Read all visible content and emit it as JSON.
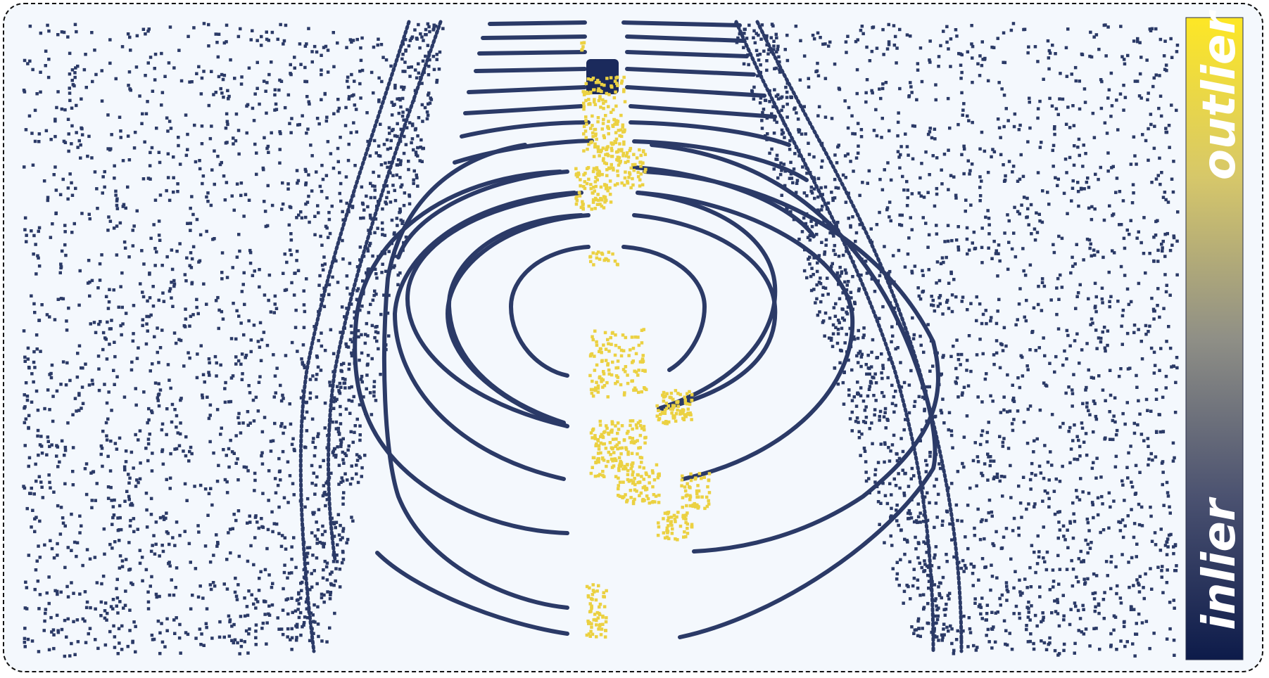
{
  "colors": {
    "background": "#f4f8fd",
    "inlier": "#2b3a67",
    "outlier": "#ebd142",
    "colorbar_top": "#fde725",
    "colorbar_mid": "#8f8f86",
    "colorbar_bottom": "#0d1b4a"
  },
  "colorbar": {
    "top_label": "outlier",
    "bottom_label": "inlier"
  },
  "scene": {
    "description_icon": "lidar-point-cloud",
    "ring_count": 8
  }
}
